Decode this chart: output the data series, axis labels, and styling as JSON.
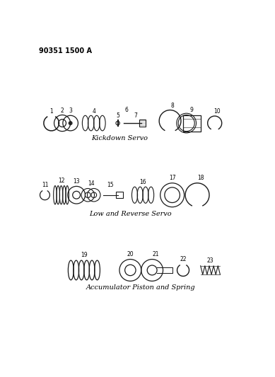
{
  "title_ref": "90351 1500 A",
  "bg": "#ffffff",
  "lc": "#1a1a1a",
  "section1_label": "Kickdown Servo",
  "section2_label": "Low and Reverse Servo",
  "section3_label": "Accumulator Piston and Spring",
  "fig_width": 3.89,
  "fig_height": 5.33,
  "dpi": 100,
  "xlim": [
    0,
    389
  ],
  "ylim": [
    0,
    533
  ]
}
